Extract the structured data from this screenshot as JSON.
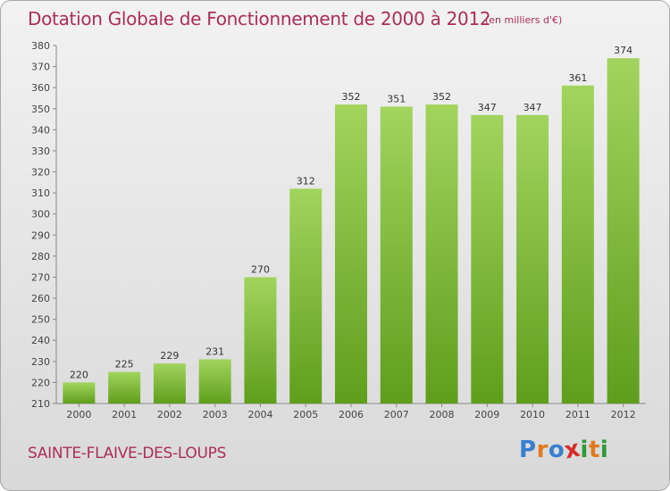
{
  "header": {
    "title": "Dotation Globale de Fonctionnement de 2000 à 2012",
    "subtitle": "(en milliers d'€)"
  },
  "footer": {
    "commune": "SAINTE-FLAIVE-DES-LOUPS",
    "logo_letters": [
      "P",
      "r",
      "o",
      "x",
      "i",
      "t",
      "i"
    ],
    "logo_colors": [
      "#3a7fcf",
      "#e07a1f",
      "#3a7fcf",
      "#d62b2b",
      "#2d9a3a",
      "#e07a1f",
      "#2d9a3a"
    ]
  },
  "chart_data": {
    "type": "bar",
    "title": "Dotation Globale de Fonctionnement de 2000 à 2012",
    "subtitle": "(en milliers d'€)",
    "xlabel": "",
    "ylabel": "",
    "categories": [
      "2000",
      "2001",
      "2002",
      "2003",
      "2004",
      "2005",
      "2006",
      "2007",
      "2008",
      "2009",
      "2010",
      "2011",
      "2012"
    ],
    "values": [
      220,
      225,
      229,
      231,
      270,
      312,
      352,
      351,
      352,
      347,
      347,
      361,
      374
    ],
    "ylim": [
      210,
      380
    ],
    "yticks": [
      210,
      220,
      230,
      240,
      250,
      260,
      270,
      280,
      290,
      300,
      310,
      320,
      330,
      340,
      350,
      360,
      370,
      380
    ],
    "grid": false,
    "bar_color_top": "#a2d45e",
    "bar_color_bottom": "#5f9e1c"
  }
}
